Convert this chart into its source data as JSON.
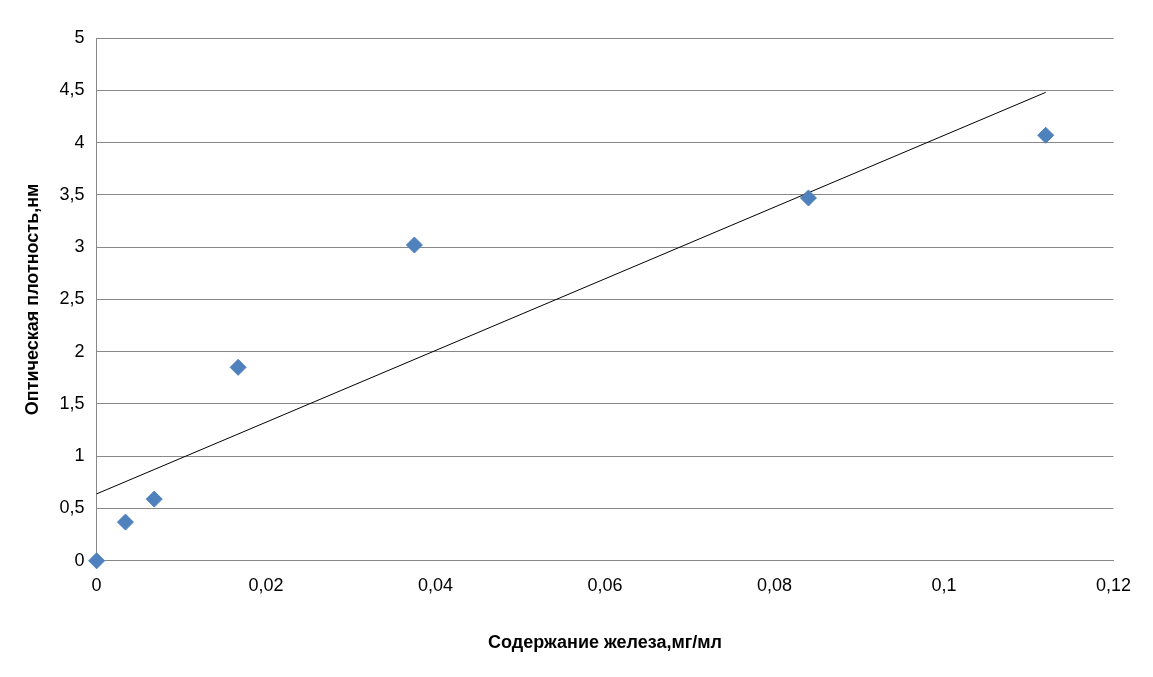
{
  "chart_data": {
    "type": "scatter",
    "xlabel": "Содержание железа,мг/мл",
    "ylabel": "Оптическая плотность,нм",
    "x": [
      0,
      0.0034,
      0.0068,
      0.0167,
      0.0375,
      0.084,
      0.112
    ],
    "series": [
      {
        "color": "#4f81bd",
        "marker": "diamond",
        "values": [
          0,
          0.37,
          0.59,
          1.85,
          3.02,
          3.47,
          4.07
        ]
      },
      {
        "type": "line",
        "color": "#000000",
        "marker": "none",
        "x": [
          0,
          0.112
        ],
        "values": [
          0.64,
          4.48
        ]
      }
    ],
    "xlim": [
      0,
      0.12
    ],
    "xticks": [
      0,
      {
        "value": 0.02,
        "label": "0,02"
      },
      {
        "value": 0.04,
        "label": "0,04"
      },
      {
        "value": 0.06,
        "label": "0,06"
      },
      {
        "value": 0.08,
        "label": "0,08"
      },
      {
        "value": 0.1,
        "label": "0,1"
      },
      {
        "value": 0.12,
        "label": "0,12"
      }
    ],
    "ylim": [
      0,
      5
    ],
    "yticks": [
      0,
      {
        "value": 0.5,
        "label": "0,5"
      },
      1,
      {
        "value": 1.5,
        "label": "1,5"
      },
      2,
      {
        "value": 2.5,
        "label": "2,5"
      },
      3,
      {
        "value": 3.5,
        "label": "3,5"
      },
      4,
      {
        "value": 4.5,
        "label": "4,5"
      },
      5
    ],
    "grid": "y",
    "legend": false
  }
}
